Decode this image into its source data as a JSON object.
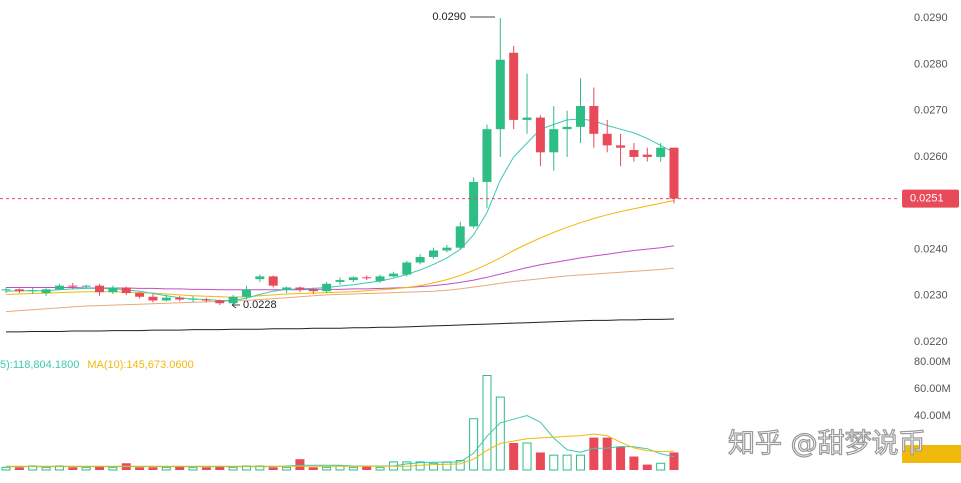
{
  "chart_data": {
    "type": "candlestick",
    "categories": [
      null,
      null,
      null,
      null,
      null,
      null,
      null,
      null,
      null,
      null,
      null,
      null,
      null,
      null,
      null,
      null,
      null,
      null,
      null,
      null,
      null,
      null,
      null,
      null,
      null,
      null,
      null,
      null,
      null,
      null,
      null,
      null,
      null,
      null,
      null,
      null,
      null,
      null,
      null,
      null,
      null,
      null,
      null,
      null,
      null,
      null,
      null,
      null,
      null,
      null,
      null
    ],
    "up_color": "#2ebd85",
    "down_color": "#e84a5a",
    "ylim": [
      0.02183,
      0.02939
    ],
    "yticks": [
      {
        "value": 0.022,
        "label": "0.0220"
      },
      {
        "value": 0.023,
        "label": "0.0230"
      },
      {
        "value": 0.024,
        "label": "0.0240"
      },
      {
        "value": 0.026,
        "label": "0.0260"
      },
      {
        "value": 0.027,
        "label": "0.0270"
      },
      {
        "value": 0.028,
        "label": "0.0280"
      },
      {
        "value": 0.029,
        "label": "0.0290"
      }
    ],
    "last_price": {
      "value": 0.0251,
      "label": "0.0251"
    },
    "annotations": {
      "high": "0.0290",
      "low": "0.0228"
    },
    "ohlc": [
      [
        0.02312,
        0.02318,
        0.02306,
        0.02314
      ],
      [
        0.02314,
        0.02316,
        0.02306,
        0.0231
      ],
      [
        0.0231,
        0.02318,
        0.02304,
        0.02312
      ],
      [
        0.02306,
        0.02316,
        0.023,
        0.02314
      ],
      [
        0.02314,
        0.02326,
        0.02312,
        0.02322
      ],
      [
        0.02322,
        0.02328,
        0.02314,
        0.0232
      ],
      [
        0.0232,
        0.02324,
        0.02316,
        0.02322
      ],
      [
        0.02322,
        0.02326,
        0.023,
        0.02308
      ],
      [
        0.02308,
        0.02322,
        0.02304,
        0.02318
      ],
      [
        0.02318,
        0.0232,
        0.02302,
        0.02306
      ],
      [
        0.02306,
        0.02308,
        0.02294,
        0.02298
      ],
      [
        0.02298,
        0.02304,
        0.02286,
        0.0229
      ],
      [
        0.0229,
        0.02302,
        0.02288,
        0.02296
      ],
      [
        0.02296,
        0.023,
        0.02288,
        0.02292
      ],
      [
        0.02292,
        0.023,
        0.02286,
        0.02294
      ],
      [
        0.02292,
        0.02296,
        0.02286,
        0.0229
      ],
      [
        0.0229,
        0.02292,
        0.0228,
        0.02284
      ],
      [
        0.02284,
        0.02302,
        0.02282,
        0.02298
      ],
      [
        0.02298,
        0.02322,
        0.02292,
        0.02314
      ],
      [
        0.02336,
        0.02346,
        0.0233,
        0.02342
      ],
      [
        0.02342,
        0.02344,
        0.02318,
        0.02322
      ],
      [
        0.02314,
        0.0232,
        0.02306,
        0.02318
      ],
      [
        0.02318,
        0.0232,
        0.02308,
        0.02314
      ],
      [
        0.02314,
        0.02318,
        0.02304,
        0.0231
      ],
      [
        0.0231,
        0.0233,
        0.02306,
        0.02326
      ],
      [
        0.0233,
        0.0234,
        0.02324,
        0.02334
      ],
      [
        0.02334,
        0.02342,
        0.0233,
        0.0234
      ],
      [
        0.0234,
        0.02344,
        0.02334,
        0.02338
      ],
      [
        0.02332,
        0.02346,
        0.02328,
        0.02342
      ],
      [
        0.02342,
        0.02352,
        0.0234,
        0.02348
      ],
      [
        0.02346,
        0.02376,
        0.02342,
        0.02372
      ],
      [
        0.02372,
        0.0239,
        0.02368,
        0.02384
      ],
      [
        0.02384,
        0.02404,
        0.0238,
        0.02398
      ],
      [
        0.02398,
        0.0241,
        0.02394,
        0.02404
      ],
      [
        0.02404,
        0.0246,
        0.024,
        0.0245
      ],
      [
        0.0245,
        0.02556,
        0.02446,
        0.02546
      ],
      [
        0.02546,
        0.0267,
        0.0249,
        0.0266
      ],
      [
        0.0266,
        0.029,
        0.026,
        0.0281
      ],
      [
        0.02825,
        0.0284,
        0.0266,
        0.0268
      ],
      [
        0.0268,
        0.0278,
        0.0265,
        0.02685
      ],
      [
        0.02685,
        0.0269,
        0.0258,
        0.0261
      ],
      [
        0.0261,
        0.0271,
        0.0257,
        0.0266
      ],
      [
        0.0266,
        0.027,
        0.026,
        0.02665
      ],
      [
        0.02665,
        0.0277,
        0.0263,
        0.0271
      ],
      [
        0.0271,
        0.0275,
        0.0262,
        0.0265
      ],
      [
        0.0265,
        0.0268,
        0.0261,
        0.02625
      ],
      [
        0.02625,
        0.0265,
        0.0258,
        0.0262
      ],
      [
        0.02615,
        0.0263,
        0.0259,
        0.026
      ],
      [
        0.02605,
        0.0262,
        0.0259,
        0.026
      ],
      [
        0.026,
        0.0263,
        0.0259,
        0.0262
      ],
      [
        0.0262,
        0.0262,
        0.025,
        0.0251
      ]
    ],
    "ma_lines": [
      {
        "color": "#222222",
        "values": [
          0.02222,
          0.02222,
          0.02223,
          0.02223,
          0.02223,
          0.02224,
          0.02224,
          0.02224,
          0.02225,
          0.02225,
          0.02225,
          0.02226,
          0.02226,
          0.02226,
          0.02227,
          0.02227,
          0.02227,
          0.02228,
          0.02228,
          0.02228,
          0.02229,
          0.02229,
          0.02229,
          0.0223,
          0.0223,
          0.0223,
          0.02231,
          0.02231,
          0.02232,
          0.02232,
          0.02233,
          0.02234,
          0.02235,
          0.02236,
          0.02237,
          0.02238,
          0.02239,
          0.0224,
          0.02241,
          0.02242,
          0.02243,
          0.02244,
          0.02245,
          0.02246,
          0.02247,
          0.02247,
          0.02248,
          0.02248,
          0.02249,
          0.02249,
          0.0225
        ]
      },
      {
        "color": "#e8a97a",
        "values": [
          0.02266,
          0.02268,
          0.0227,
          0.02272,
          0.02274,
          0.02276,
          0.02278,
          0.02279,
          0.0228,
          0.02281,
          0.02282,
          0.02283,
          0.02284,
          0.02285,
          0.02286,
          0.02287,
          0.02288,
          0.02289,
          0.0229,
          0.02292,
          0.02294,
          0.02296,
          0.02298,
          0.023,
          0.02302,
          0.02303,
          0.02304,
          0.02305,
          0.02306,
          0.02307,
          0.02308,
          0.02309,
          0.0231,
          0.02312,
          0.02315,
          0.02319,
          0.02323,
          0.02327,
          0.02331,
          0.02334,
          0.02337,
          0.0234,
          0.02343,
          0.02345,
          0.02347,
          0.02349,
          0.02351,
          0.02353,
          0.02355,
          0.02357,
          0.0236
        ]
      },
      {
        "color": "#c04fc6",
        "values": [
          0.02318,
          0.02318,
          0.02318,
          0.02318,
          0.02318,
          0.02318,
          0.02317,
          0.02317,
          0.02317,
          0.02317,
          0.02316,
          0.02316,
          0.02315,
          0.02315,
          0.02314,
          0.02314,
          0.02313,
          0.02313,
          0.02313,
          0.02313,
          0.02313,
          0.02313,
          0.02313,
          0.02314,
          0.02314,
          0.02314,
          0.02315,
          0.02315,
          0.02316,
          0.02317,
          0.02318,
          0.0232,
          0.02322,
          0.02325,
          0.02329,
          0.02334,
          0.0234,
          0.02347,
          0.02354,
          0.02361,
          0.02367,
          0.02372,
          0.02377,
          0.02382,
          0.02386,
          0.0239,
          0.02394,
          0.02398,
          0.02401,
          0.02404,
          0.02408
        ]
      },
      {
        "color": "#f0b90b",
        "values": [
          0.02303,
          0.02304,
          0.02305,
          0.02306,
          0.02307,
          0.02308,
          0.02309,
          0.02309,
          0.02309,
          0.02308,
          0.02307,
          0.02306,
          0.02304,
          0.02302,
          0.023,
          0.02299,
          0.02298,
          0.02297,
          0.02298,
          0.023,
          0.02302,
          0.02304,
          0.02305,
          0.02306,
          0.02307,
          0.02308,
          0.02309,
          0.02311,
          0.02313,
          0.02315,
          0.02318,
          0.02322,
          0.02328,
          0.02335,
          0.02344,
          0.02355,
          0.02368,
          0.02382,
          0.02398,
          0.02412,
          0.02425,
          0.02437,
          0.02448,
          0.02458,
          0.02467,
          0.02475,
          0.02482,
          0.02488,
          0.02494,
          0.025,
          0.02506
        ]
      },
      {
        "color": "#3cc8b4",
        "values": [
          0.0231,
          0.02311,
          0.02311,
          0.02311,
          0.02313,
          0.02315,
          0.02316,
          0.02316,
          0.02315,
          0.02313,
          0.0231,
          0.02305,
          0.023,
          0.02296,
          0.02293,
          0.02292,
          0.0229,
          0.0229,
          0.02295,
          0.02303,
          0.0231,
          0.02314,
          0.02315,
          0.02316,
          0.02318,
          0.02321,
          0.02324,
          0.02328,
          0.02332,
          0.02338,
          0.02346,
          0.02356,
          0.02368,
          0.02382,
          0.024,
          0.02432,
          0.0248,
          0.0255,
          0.026,
          0.0263,
          0.0266,
          0.0267,
          0.0268,
          0.02682,
          0.02678,
          0.02668,
          0.0266,
          0.02652,
          0.0264,
          0.02625,
          0.0261
        ]
      }
    ],
    "volume": {
      "values": [
        2,
        2,
        3,
        2,
        3,
        2,
        2,
        3,
        2,
        5,
        2,
        2,
        2,
        3,
        2,
        2,
        3,
        2,
        3,
        3,
        2,
        2,
        8,
        2,
        2,
        3,
        2,
        3,
        2,
        6,
        6,
        6,
        5,
        6,
        7,
        38,
        70,
        54,
        20,
        20,
        13,
        11,
        11,
        11,
        24,
        24,
        17,
        10,
        4,
        5,
        13
      ],
      "ylim": [
        0,
        88.9
      ],
      "yticks": [
        {
          "value": 40,
          "label": "40.00M"
        },
        {
          "value": 60,
          "label": "60.00M"
        },
        {
          "value": 80,
          "label": "80.00M"
        }
      ],
      "ma_lines": [
        {
          "color": "#3cc8b4",
          "legend": "5):118,804.1800",
          "values": [
            2.5,
            2.5,
            2.5,
            2.5,
            2.5,
            2.5,
            2.5,
            2.5,
            2.5,
            2.5,
            2.5,
            2.5,
            2.5,
            2.5,
            2.5,
            2.5,
            2.5,
            2.5,
            2.5,
            2.5,
            2.5,
            3,
            3.5,
            3.5,
            3.5,
            3.5,
            3,
            3,
            3,
            3,
            4.5,
            5.5,
            5.8,
            5.8,
            6,
            12.4,
            25,
            35,
            37.6,
            40.4,
            35.4,
            23.6,
            15,
            13.2,
            16,
            16.2,
            17.4,
            17.2,
            15.8,
            12,
            9.8
          ]
        },
        {
          "color": "#f0b90b",
          "legend": "MA(10):145,673.0600",
          "values": [
            2.8,
            2.8,
            2.8,
            2.8,
            2.8,
            2.8,
            2.8,
            2.8,
            2.8,
            2.8,
            2.8,
            2.8,
            2.8,
            2.8,
            2.8,
            2.8,
            2.8,
            2.8,
            2.8,
            2.8,
            2.8,
            2.8,
            2.8,
            2.8,
            2.8,
            2.8,
            2.8,
            2.8,
            2.8,
            2.8,
            2.8,
            3.5,
            4,
            4.2,
            4.5,
            8,
            14.5,
            19.7,
            21.5,
            23.2,
            23.8,
            24.3,
            25,
            25.4,
            26.7,
            25.4,
            20.6,
            16.4,
            14.3,
            13.6,
            14
          ]
        }
      ]
    },
    "watermark": "知乎 @甜梦说币"
  }
}
